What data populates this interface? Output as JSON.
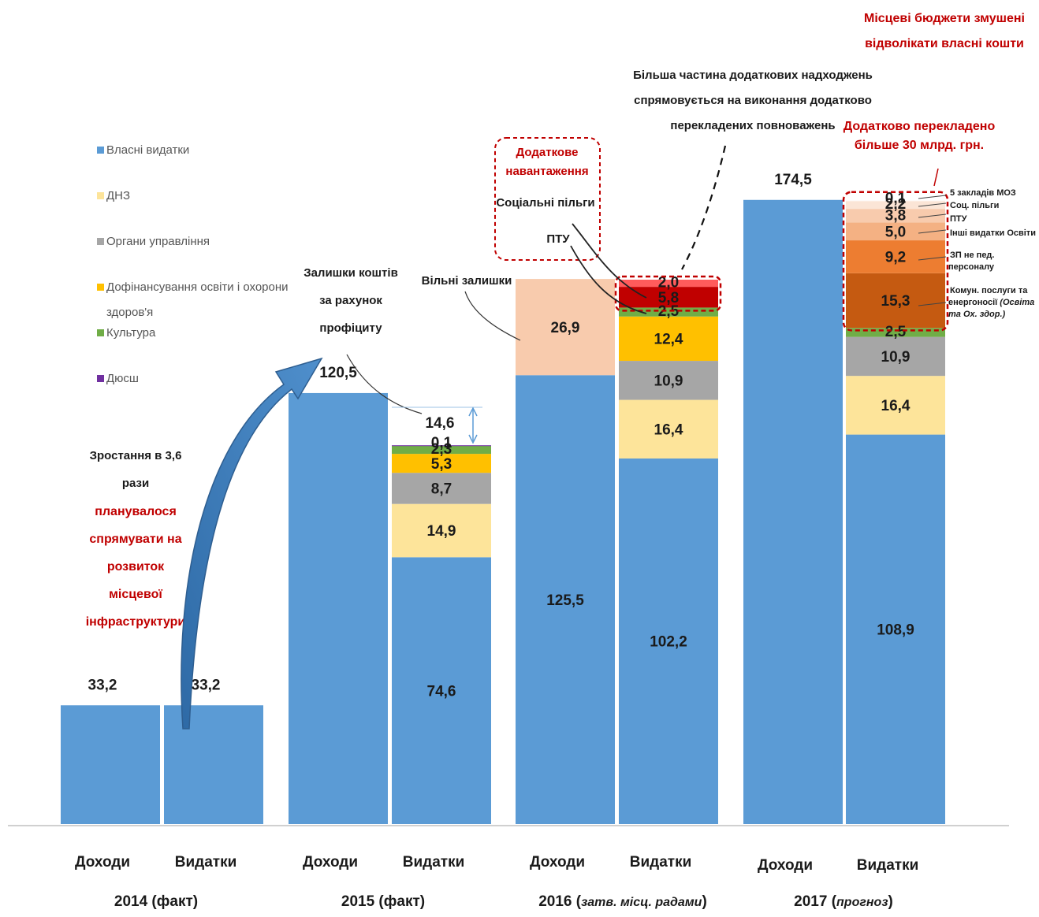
{
  "chart_data": {
    "type": "bar",
    "groups": [
      {
        "label": "2014 (факт)",
        "period_main": "2014 (факт)",
        "period_note": ""
      },
      {
        "label": "2015 (факт)",
        "period_main": "2015 (факт)",
        "period_note": ""
      },
      {
        "label": "2016 (затв. місц. радами)",
        "period_main": "2016 (",
        "period_note": "затв. місц. радами",
        "period_close": ")"
      },
      {
        "label": "2017 (прогноз)",
        "period_main": "2017 (",
        "period_note": "прогноз",
        "period_close": ")"
      }
    ],
    "bar_labels": {
      "income": "Доходи",
      "expense": "Видатки"
    },
    "legend": [
      {
        "name": "Власні видатки",
        "color": "#5b9bd5"
      },
      {
        "name": "ДНЗ",
        "color": "#fde49a"
      },
      {
        "name": "Органи управління",
        "color": "#a6a6a6"
      },
      {
        "name": "Дофінансування освіти і охорони здоров'я",
        "line1": "Дофінансування освіти і охорони",
        "line2": "здоров'я",
        "color": "#ffc000"
      },
      {
        "name": "Культура",
        "color": "#70ad47"
      },
      {
        "name": "Дюсш",
        "color": "#7030a0"
      }
    ],
    "bars": [
      {
        "group": 0,
        "kind": "income",
        "total_label": "33,2",
        "segments": [
          {
            "value": 33.2,
            "label": "",
            "color": "#5b9bd5"
          }
        ]
      },
      {
        "group": 0,
        "kind": "expense",
        "total_label": "33,2",
        "segments": [
          {
            "value": 33.2,
            "label": "",
            "color": "#5b9bd5"
          }
        ]
      },
      {
        "group": 1,
        "kind": "income",
        "total_label": "120,5",
        "segments": [
          {
            "value": 120.5,
            "label": "",
            "color": "#5b9bd5"
          }
        ]
      },
      {
        "group": 1,
        "kind": "expense",
        "total_label": "",
        "segments": [
          {
            "value": 74.6,
            "label": "74,6",
            "color": "#5b9bd5"
          },
          {
            "value": 14.9,
            "label": "14,9",
            "color": "#fde49a"
          },
          {
            "value": 8.7,
            "label": "8,7",
            "color": "#a6a6a6"
          },
          {
            "value": 5.3,
            "label": "5,3",
            "color": "#ffc000"
          },
          {
            "value": 2.3,
            "label": "2,3",
            "color": "#70ad47"
          },
          {
            "value": 0.1,
            "label": "0,1",
            "color": "#7030a0"
          }
        ]
      },
      {
        "group": 2,
        "kind": "income",
        "total_label": "",
        "segments": [
          {
            "value": 125.5,
            "label": "125,5",
            "color": "#5b9bd5"
          },
          {
            "value": 26.9,
            "label": "26,9",
            "color": "#f8cbad"
          }
        ]
      },
      {
        "group": 2,
        "kind": "expense",
        "total_label": "",
        "segments": [
          {
            "value": 102.2,
            "label": "102,2",
            "color": "#5b9bd5"
          },
          {
            "value": 16.4,
            "label": "16,4",
            "color": "#fde49a"
          },
          {
            "value": 10.9,
            "label": "10,9",
            "color": "#a6a6a6"
          },
          {
            "value": 12.4,
            "label": "12,4",
            "color": "#ffc000"
          },
          {
            "value": 2.5,
            "label": "2,5",
            "color": "#70ad47"
          },
          {
            "value": 5.8,
            "label": "5,8",
            "color": "#c00000"
          },
          {
            "value": 2.0,
            "label": "2,0",
            "color": "#ff5b5b"
          }
        ]
      },
      {
        "group": 3,
        "kind": "income",
        "total_label": "174,5",
        "segments": [
          {
            "value": 174.5,
            "label": "",
            "color": "#5b9bd5"
          }
        ]
      },
      {
        "group": 3,
        "kind": "expense",
        "total_label": "",
        "segments": [
          {
            "value": 108.9,
            "label": "108,9",
            "color": "#5b9bd5"
          },
          {
            "value": 16.4,
            "label": "16,4",
            "color": "#fde49a"
          },
          {
            "value": 10.9,
            "label": "10,9",
            "color": "#a6a6a6"
          },
          {
            "value": 2.5,
            "label": "2,5",
            "color": "#70ad47"
          },
          {
            "value": 15.3,
            "label": "15,3",
            "color": "#c55a11"
          },
          {
            "value": 9.2,
            "label": "9,2",
            "color": "#ed7d31"
          },
          {
            "value": 5.0,
            "label": "5,0",
            "color": "#f4b183"
          },
          {
            "value": 3.8,
            "label": "3,8",
            "color": "#f8cbad"
          },
          {
            "value": 2.2,
            "label": "2,2",
            "color": "#fbe5d6"
          },
          {
            "value": 0.1,
            "label": "0,1",
            "color": "#fdf1e8"
          }
        ]
      }
    ],
    "ylim": [
      0,
      190
    ],
    "grid": false,
    "legend_position": "left"
  },
  "annotations": {
    "growth_black": [
      "Зростання в 3,6",
      "рази"
    ],
    "growth_red": [
      "планувалося",
      "спрямувати на",
      "розвиток",
      "місцевої",
      "інфраструктури"
    ],
    "surplus_2015": [
      "Залишки коштів",
      "за рахунок",
      "профіциту"
    ],
    "surplus_2015_value": "14,6",
    "free_balance": "Вільні залишки",
    "extra_load_title": [
      "Додаткове",
      "навантаження"
    ],
    "extra_load_items": [
      "Соціальні пільги",
      "ПТУ"
    ],
    "most_income": [
      "Більша частина додаткових надходжень",
      "спрямовується на виконання додатково",
      "перекладених повноважень"
    ],
    "transferred_2017": [
      "Додатково перекладено",
      "більше 30 млрд. грн."
    ],
    "local_budgets": [
      "Місцеві бюджети змушені",
      "відволікати власні кошти"
    ],
    "right_labels": [
      {
        "text": "5 закладів МОЗ"
      },
      {
        "text": "Соц. пільги"
      },
      {
        "text": "ПТУ"
      },
      {
        "text": "Інші видатки Освіти"
      },
      {
        "text": "ЗП не пед.",
        "text2": "персоналу"
      },
      {
        "text": "Комун. послуги та",
        "text2": "енергоносії",
        "text2_italic": " (Освіта",
        "text3": "та Ох. здор.)"
      }
    ]
  }
}
